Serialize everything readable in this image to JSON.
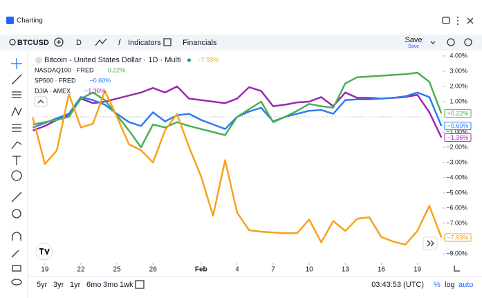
{
  "ui": {
    "app_title": "Charting",
    "symbol": "BTCUSD",
    "interval": "D",
    "indicators": "Indicators",
    "financials": "Financials",
    "save": "Save",
    "save_sub": "Save",
    "ranges": [
      "5yr",
      "3yr",
      "1yr",
      "6mo",
      "3mo",
      "1wk"
    ],
    "clock": "03:43:53 (UTC)",
    "percent": "%",
    "log": "log",
    "auto": "auto"
  },
  "chart_data": {
    "type": "line",
    "x": [
      18,
      19,
      20,
      21,
      22,
      23,
      24,
      25,
      26,
      27,
      28,
      29,
      30,
      31,
      32,
      33,
      34,
      35,
      36,
      37,
      38,
      39,
      40,
      41,
      42,
      43,
      44,
      45,
      46,
      47,
      48,
      49,
      50,
      51,
      52
    ],
    "xlim": [
      17.8,
      52.1
    ],
    "xticks": [
      {
        "value": 19,
        "label": "19"
      },
      {
        "value": 22,
        "label": "22"
      },
      {
        "value": 25,
        "label": "25"
      },
      {
        "value": 28,
        "label": "28"
      },
      {
        "value": 32,
        "label": "Feb"
      },
      {
        "value": 35,
        "label": "4"
      },
      {
        "value": 38,
        "label": "7"
      },
      {
        "value": 41,
        "label": "10"
      },
      {
        "value": 44,
        "label": "13"
      },
      {
        "value": 47,
        "label": "16"
      },
      {
        "value": 50,
        "label": "19"
      }
    ],
    "ylim": [
      -9.59,
      4.27
    ],
    "yticks": [
      {
        "value": 4,
        "label": "4.00%"
      },
      {
        "value": 3,
        "label": "3.00%"
      },
      {
        "value": 2,
        "label": "2.00%"
      },
      {
        "value": 1,
        "label": "1.00%"
      },
      {
        "value": -1,
        "label": "−1.00%"
      },
      {
        "value": -2,
        "label": "−2.00%"
      },
      {
        "value": -3,
        "label": "−3.00%"
      },
      {
        "value": -4,
        "label": "−4.00%"
      },
      {
        "value": -5,
        "label": "−5.00%"
      },
      {
        "value": -6,
        "label": "−6.00%"
      },
      {
        "value": -7,
        "label": "−7.00%"
      },
      {
        "value": -8,
        "label": "−8.00%"
      },
      {
        "value": -9,
        "label": "−9.00%"
      }
    ],
    "series": [
      {
        "name": "Bitcoin - United States Dollar · 1D · Multi",
        "color": "#f7a21b",
        "legend_label": "−7.93%",
        "axis_label": "−7.93%",
        "values": [
          -0.05,
          -3.1,
          -2.2,
          1.5,
          -0.7,
          -0.45,
          1.7,
          0.0,
          -1.8,
          -2.2,
          -3.0,
          -0.9,
          0.2,
          -2.0,
          -3.9,
          -6.5,
          -2.85,
          -6.3,
          -7.45,
          -7.55,
          -7.6,
          -7.65,
          -7.65,
          -6.75,
          -8.25,
          -6.85,
          -7.5,
          -6.7,
          -6.6,
          -7.9,
          -8.2,
          -8.4,
          -7.5,
          -5.85,
          -7.93
        ]
      },
      {
        "name": "NASDAQ100 · FRED",
        "color": "#4caf50",
        "legend_label": "0.22%",
        "axis_label": "+0.22%",
        "values": [
          -0.5,
          -0.35,
          -0.2,
          0.0,
          1.2,
          1.6,
          1.1,
          0.1,
          -0.9,
          -2.0,
          -0.5,
          -0.7,
          -0.35,
          -0.6,
          -0.8,
          -1.0,
          -1.2,
          0.0,
          0.5,
          1.0,
          -0.35,
          0.0,
          0.4,
          0.85,
          0.7,
          0.6,
          2.2,
          2.6,
          2.65,
          2.7,
          2.75,
          2.8,
          2.9,
          2.3,
          0.22
        ]
      },
      {
        "name": "SP500 · FRED",
        "color": "#2f7bf0",
        "legend_label": "−0.60%",
        "axis_label": "−0.60%",
        "values": [
          -0.7,
          -0.4,
          -0.1,
          0.2,
          1.3,
          1.1,
          0.8,
          0.2,
          -0.35,
          -0.6,
          0.3,
          -0.3,
          0.1,
          0.2,
          -0.2,
          -0.5,
          -0.8,
          0.0,
          0.35,
          0.6,
          -0.3,
          0.0,
          0.2,
          0.4,
          0.45,
          0.2,
          1.1,
          1.15,
          1.15,
          1.2,
          1.25,
          1.35,
          1.6,
          1.3,
          -0.6
        ]
      },
      {
        "name": "DJIA · AMEX",
        "color": "#9c27b0",
        "legend_label": "−1.36%",
        "axis_label": "−1.36%",
        "values": [
          -0.9,
          -0.6,
          -0.2,
          0.1,
          1.2,
          0.9,
          1.0,
          1.2,
          1.4,
          1.6,
          1.9,
          1.6,
          2.0,
          1.2,
          1.1,
          1.0,
          0.9,
          1.2,
          1.95,
          1.7,
          0.7,
          0.8,
          0.95,
          1.0,
          1.3,
          0.7,
          1.6,
          1.25,
          1.25,
          1.2,
          1.25,
          1.3,
          1.45,
          0.3,
          -1.36
        ]
      }
    ]
  }
}
